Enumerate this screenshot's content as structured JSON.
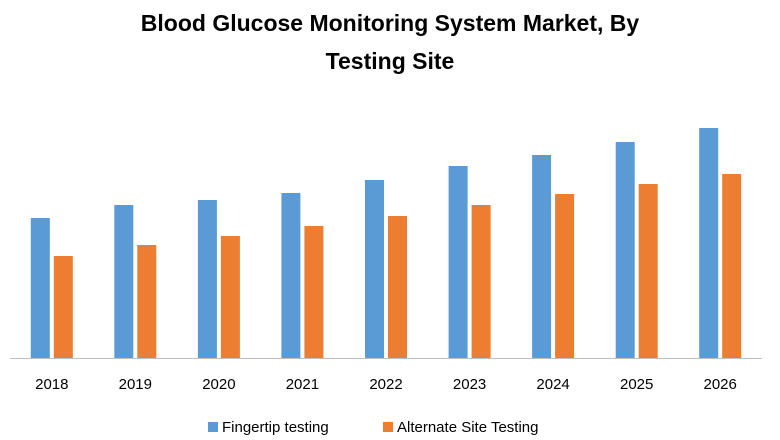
{
  "chart_data": {
    "type": "bar",
    "title_line1": "Blood Glucose Monitoring System Market, By",
    "title_line2": "Testing Site",
    "xlabel": "",
    "ylabel": "",
    "categories": [
      "2018",
      "2019",
      "2020",
      "2021",
      "2022",
      "2023",
      "2024",
      "2025",
      "2026"
    ],
    "series": [
      {
        "name": "Fingertip testing",
        "color": "#5B9BD5",
        "values": [
          140,
          153,
          158,
          165,
          178,
          192,
          203,
          216,
          230
        ]
      },
      {
        "name": "Alternate Site Testing",
        "color": "#ED7D31",
        "values": [
          102,
          113,
          122,
          132,
          142,
          153,
          164,
          174,
          184
        ]
      }
    ],
    "ylim": [
      0,
      240
    ],
    "grid": false,
    "legend_position": "bottom"
  }
}
